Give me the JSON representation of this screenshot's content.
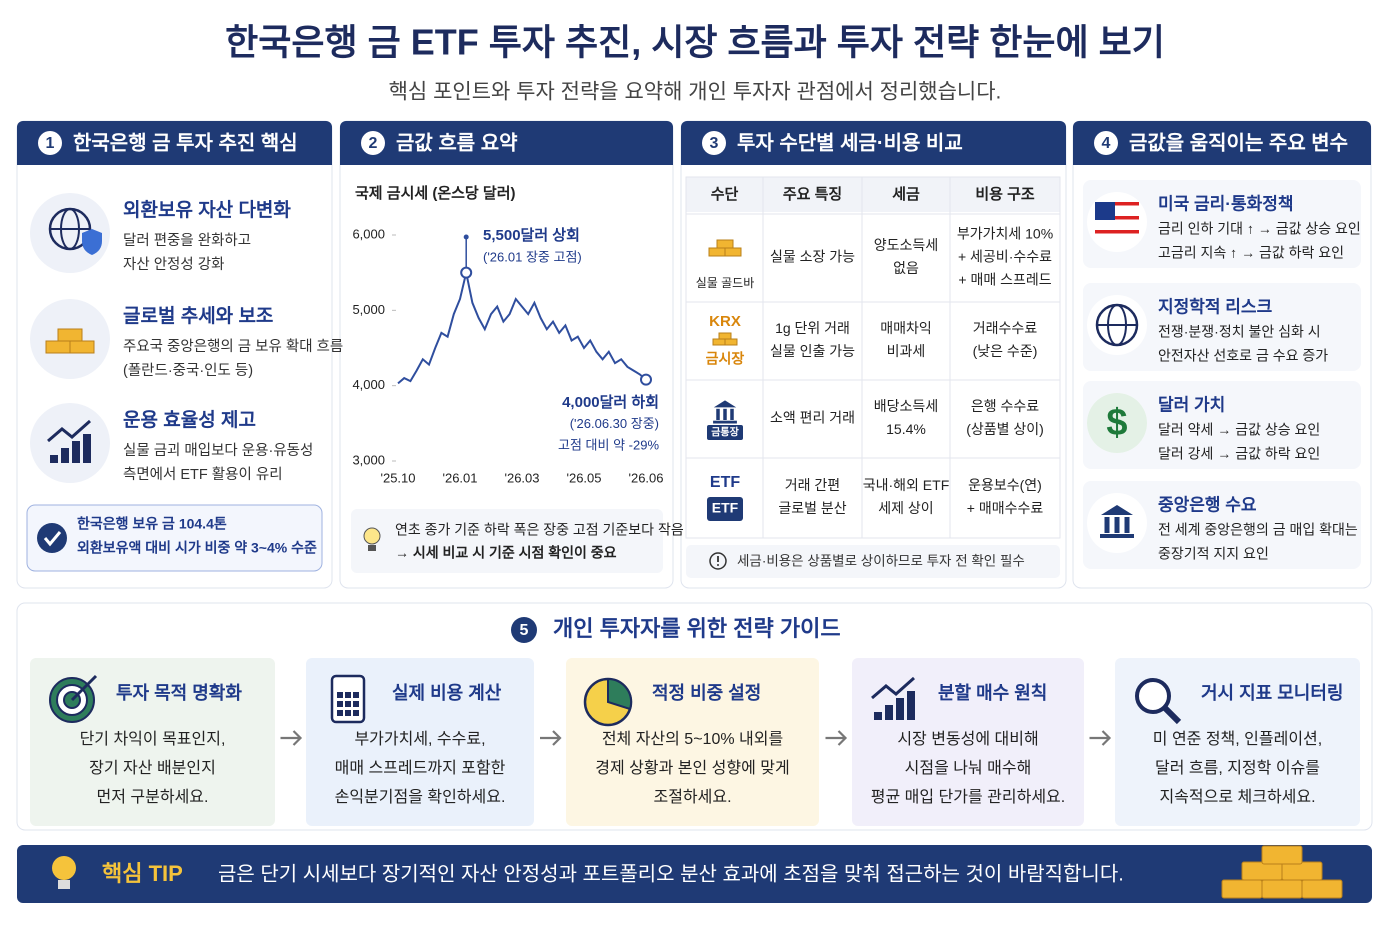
{
  "header": {
    "title": "한국은행 금 ETF 투자 추진, 시장 흐름과 투자 전략 한눈에 보기",
    "subtitle": "핵심 포인트와 투자 전략을 요약해 개인 투자자 관점에서 정리했습니다."
  },
  "panels": [
    {
      "num": "1",
      "title": "한국은행 금 투자 추진 핵심",
      "items": [
        {
          "title": "외환보유 자산 다변화",
          "lines": [
            "달러 편중을 완화하고",
            "자산 안정성 강화"
          ]
        },
        {
          "title": "글로벌 추세와 보조",
          "lines": [
            "주요국 중앙은행의 금 보유 확대 흐름",
            "(폴란드·중국·인도 등)"
          ]
        },
        {
          "title": "운용 효율성 제고",
          "lines": [
            "실물 금괴 매입보다 운용·유동성",
            "측면에서 ETF 활용이 유리"
          ]
        }
      ],
      "callout": [
        "한국은행 보유 금 104.4톤",
        "외환보유액 대비 시가 비중 약 3~4% 수준"
      ]
    },
    {
      "num": "2",
      "title": "금값 흐름 요약"
    },
    {
      "num": "3",
      "title": "투자 수단별 세금·비용 비교",
      "table": {
        "header": [
          "수단",
          "주요 특징",
          "세금",
          "비용 구조"
        ],
        "rows": [
          {
            "label": "실물 골드바",
            "cells": [
              [
                "실물 소장 가능"
              ],
              [
                "양도소득세",
                "없음"
              ],
              [
                "부가가치세 10%",
                "+ 세공비·수수료",
                "+ 매매 스프레드"
              ]
            ]
          },
          {
            "icon_text": "KRX",
            "label": "금시장",
            "cells": [
              [
                "1g 단위 거래",
                "실물 인출 가능"
              ],
              [
                "매매차익",
                "비과세"
              ],
              [
                "거래수수료",
                "(낮은 수준)"
              ]
            ]
          },
          {
            "icon_text": "금통장",
            "cells": [
              [
                "소액 편리 거래"
              ],
              [
                "배당소득세",
                "15.4%"
              ],
              [
                "은행 수수료",
                "(상품별 상이)"
              ]
            ]
          },
          {
            "label": "ETF",
            "icon_text": "ETF",
            "cells": [
              [
                "거래 간편",
                "글로벌 분산"
              ],
              [
                "국내·해외 ETF",
                "세제 상이"
              ],
              [
                "운용보수(연)",
                "+ 매매수수료"
              ]
            ]
          }
        ]
      },
      "note": "세금·비용은 상품별로 상이하므로 투자 전 확인 필수"
    },
    {
      "num": "4",
      "title": "금값을 움직이는 주요 변수",
      "items": [
        {
          "title": "미국 금리·통화정책",
          "lines": [
            "금리 인하 기대 ↑ → 금값 상승 요인",
            "고금리 지속 ↑ → 금값 하락 요인"
          ]
        },
        {
          "title": "지정학적 리스크",
          "lines": [
            "전쟁·분쟁·정치 불안 심화 시",
            "안전자산 선호로 금 수요 증가"
          ]
        },
        {
          "title": "달러 가치",
          "lines": [
            "달러 약세 → 금값 상승 요인",
            "달러 강세 → 금값 하락 요인"
          ]
        },
        {
          "title": "중앙은행 수요",
          "lines": [
            "전 세계 중앙은행의 금 매입 확대는",
            "중장기적 지지 요인"
          ]
        }
      ]
    }
  ],
  "chart_data": {
    "type": "line",
    "title": "국제 금시세 (온스당 달러)",
    "categories": [
      "'25.10",
      null,
      null,
      null,
      null,
      null,
      null,
      null,
      null,
      null,
      "'26.01",
      null,
      null,
      null,
      null,
      null,
      null,
      null,
      null,
      null,
      "'26.03",
      null,
      null,
      null,
      null,
      null,
      null,
      null,
      null,
      null,
      "'26.05",
      null,
      null,
      null,
      null,
      null,
      null,
      null,
      null,
      null,
      "'26.06"
    ],
    "series": [
      {
        "name": "국제 금시세",
        "color": "#2f4e9e",
        "values": [
          4030,
          4100,
          4060,
          4200,
          4350,
          4280,
          4500,
          4700,
          4650,
          4950,
          5150,
          5500,
          5100,
          4900,
          4750,
          4950,
          5050,
          4850,
          4950,
          5150,
          5050,
          4950,
          5100,
          4900,
          4750,
          4850,
          4700,
          4800,
          4600,
          4650,
          4500,
          4600,
          4450,
          4350,
          4450,
          4300,
          4350,
          4250,
          4200,
          4150,
          4080
        ]
      }
    ],
    "ylim": [
      3000,
      6000
    ],
    "yticks": [
      {
        "value": 3000,
        "label": "3,000"
      },
      {
        "value": 4000,
        "label": "4,000"
      },
      {
        "value": 5000,
        "label": "5,000"
      },
      {
        "value": 6000,
        "label": "6,000"
      }
    ],
    "annotations": [
      {
        "lines": [
          "5,500달러 상회",
          "('26.01 장중 고점)"
        ]
      },
      {
        "lines": [
          "4,000달러 하회",
          "('26.06.30 장중)",
          "고점 대비 약 -29%"
        ]
      }
    ],
    "note": [
      "연초 종가 기준 하락 폭은 장중 고점 기준보다 작음",
      "→ 시세 비교 시 기준 시점 확인이 중요"
    ]
  },
  "strategy": {
    "num": "5",
    "title": "개인 투자자를 위한 전략 가이드",
    "steps": [
      {
        "title": "투자 목적 명확화",
        "lines": [
          "단기 차익이 목표인지,",
          "장기 자산 배분인지",
          "먼저 구분하세요."
        ]
      },
      {
        "title": "실제 비용 계산",
        "lines": [
          "부가가치세, 수수료,",
          "매매 스프레드까지 포함한",
          "손익분기점을 확인하세요."
        ]
      },
      {
        "title": "적정 비중 설정",
        "lines": [
          "전체 자산의 5~10% 내외를",
          "경제 상황과 본인 성향에 맞게",
          "조절하세요."
        ]
      },
      {
        "title": "분할 매수 원칙",
        "lines": [
          "시장 변동성에 대비해",
          "시점을 나눠 매수해",
          "평균 매입 단가를 관리하세요."
        ]
      },
      {
        "title": "거시 지표 모니터링",
        "lines": [
          "미 연준 정책, 인플레이션,",
          "달러 흐름, 지정학 이슈를",
          "지속적으로 체크하세요."
        ]
      }
    ]
  },
  "tip": {
    "label": "핵심 TIP",
    "text": "금은 단기 시세보다 장기적인 자산 안정성과 포트폴리오 분산 효과에 초점을 맞춰 접근하는 것이 바람직합니다."
  }
}
